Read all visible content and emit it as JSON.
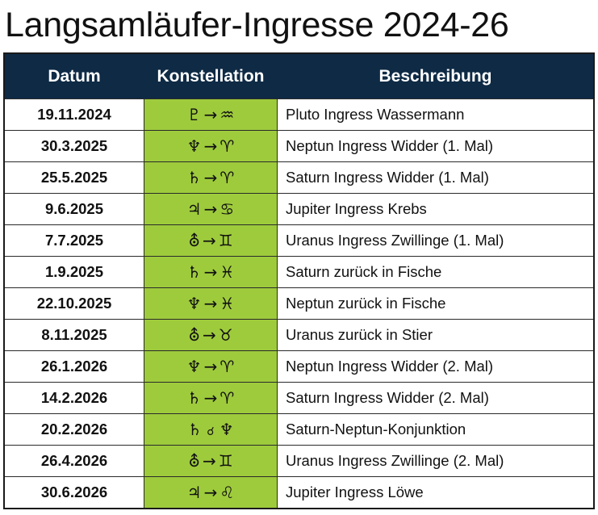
{
  "title": "Langsamläufer-Ingresse 2024-26",
  "columns": [
    "Datum",
    "Konstellation",
    "Beschreibung"
  ],
  "rows": [
    {
      "date": "19.11.2024",
      "planet": "♇",
      "op": "→",
      "sign": "♒",
      "desc": "Pluto Ingress Wassermann"
    },
    {
      "date": "30.3.2025",
      "planet": "♆",
      "op": "→",
      "sign": "♈",
      "desc": "Neptun Ingress Widder (1. Mal)"
    },
    {
      "date": "25.5.2025",
      "planet": "♄",
      "op": "→",
      "sign": "♈",
      "desc": "Saturn Ingress Widder (1. Mal)"
    },
    {
      "date": "9.6.2025",
      "planet": "♃",
      "op": "→",
      "sign": "♋",
      "desc": "Jupiter Ingress Krebs"
    },
    {
      "date": "7.7.2025",
      "planet": "⛢",
      "op": "→",
      "sign": "♊",
      "desc": "Uranus Ingress Zwillinge (1. Mal)"
    },
    {
      "date": "1.9.2025",
      "planet": "♄",
      "op": "→",
      "sign": "♓",
      "desc": "Saturn zurück in Fische"
    },
    {
      "date": "22.10.2025",
      "planet": "♆",
      "op": "→",
      "sign": "♓",
      "desc": "Neptun zurück in Fische"
    },
    {
      "date": "8.11.2025",
      "planet": "⛢",
      "op": "→",
      "sign": "♉",
      "desc": "Uranus zurück in Stier"
    },
    {
      "date": "26.1.2026",
      "planet": "♆",
      "op": "→",
      "sign": "♈",
      "desc": "Neptun Ingress Widder (2. Mal)"
    },
    {
      "date": "14.2.2026",
      "planet": "♄",
      "op": "→",
      "sign": "♈",
      "desc": "Saturn Ingress Widder (2. Mal)"
    },
    {
      "date": "20.2.2026",
      "planet": "♄",
      "op": "☌",
      "sign": "♆",
      "desc": "Saturn-Neptun-Konjunktion"
    },
    {
      "date": "26.4.2026",
      "planet": "⛢",
      "op": "→",
      "sign": "♊",
      "desc": "Uranus Ingress Zwillinge (2. Mal)"
    },
    {
      "date": "30.6.2026",
      "planet": "♃",
      "op": "→",
      "sign": "♌",
      "desc": "Jupiter Ingress Löwe"
    }
  ],
  "colors": {
    "header_bg": "#0e2a45",
    "constellation_bg": "#9ecb3c"
  }
}
